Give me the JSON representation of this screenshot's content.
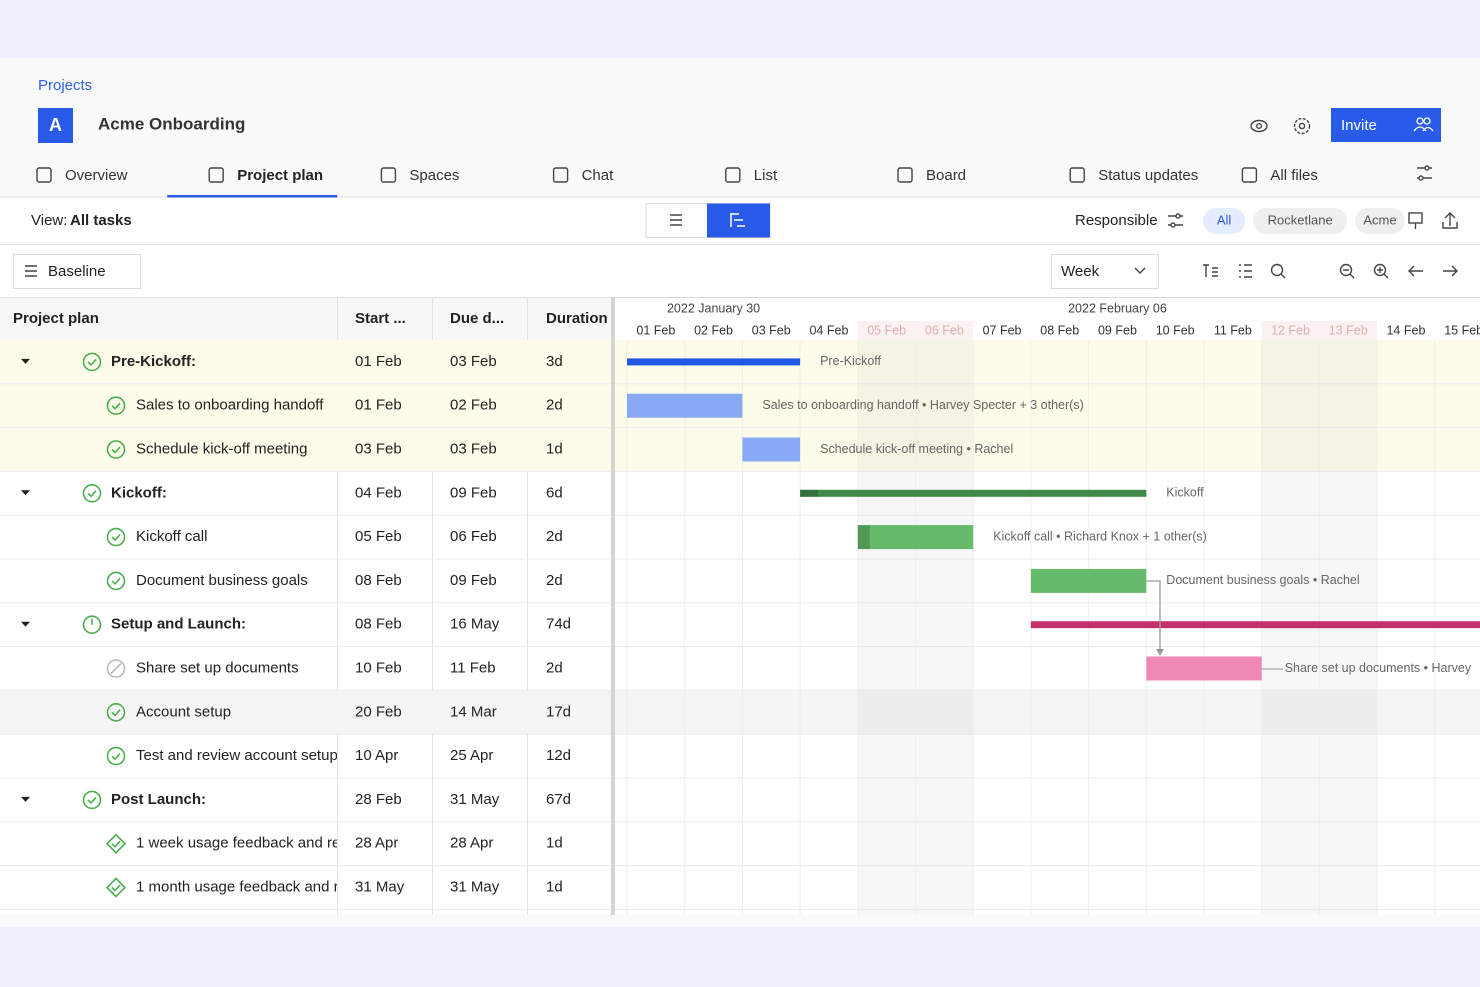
{
  "breadcrumb": "Projects",
  "project": {
    "avatar": "A",
    "name": "Acme Onboarding"
  },
  "invite": "Invite",
  "tabs": [
    {
      "label": "Overview"
    },
    {
      "label": "Project plan",
      "active": true
    },
    {
      "label": "Spaces"
    },
    {
      "label": "Chat"
    },
    {
      "label": "List"
    },
    {
      "label": "Board"
    },
    {
      "label": "Status updates"
    },
    {
      "label": "All files"
    }
  ],
  "toolbar": {
    "view_label": "View:",
    "view_value": "All tasks",
    "responsible": "Responsible",
    "filters": [
      {
        "label": "All",
        "active": true
      },
      {
        "label": "Rocketlane"
      },
      {
        "label": "Acme"
      }
    ],
    "baseline": "Baseline",
    "scale": "Week"
  },
  "table": {
    "columns": [
      "Project plan",
      "Start ...",
      "Due d...",
      "Duration"
    ],
    "rows": [
      {
        "level": 0,
        "status": "done",
        "name": "Pre-Kickoff:",
        "start": "01 Feb",
        "due": "03 Feb",
        "duration": "3d",
        "highlight": "#fdfbea",
        "bar": {
          "color": "#2257e4",
          "label": "Pre-Kickoff"
        }
      },
      {
        "level": 1,
        "status": "done",
        "name": "Sales to onboarding handoff",
        "start": "01 Feb",
        "due": "02 Feb",
        "duration": "2d",
        "highlight": "#fdfbea",
        "bar": {
          "color": "#88a9f4",
          "label": "Sales to onboarding handoff  •  Harvey Specter + 3 other(s)"
        }
      },
      {
        "level": 1,
        "status": "done",
        "name": "Schedule kick-off meeting",
        "start": "03 Feb",
        "due": "03 Feb",
        "duration": "1d",
        "highlight": "#fdfbea",
        "bar": {
          "color": "#88a9f4",
          "label": "Schedule kick-off meeting  •  Rachel"
        }
      },
      {
        "level": 0,
        "status": "done",
        "name": "Kickoff:",
        "start": "04 Feb",
        "due": "09 Feb",
        "duration": "6d",
        "bar": {
          "color": "#3e8a48",
          "label": "Kickoff"
        }
      },
      {
        "level": 1,
        "status": "done",
        "name": "Kickoff call",
        "start": "05 Feb",
        "due": "06 Feb",
        "duration": "2d",
        "bar": {
          "color": "#66bb6a",
          "label": "Kickoff call  •  Richard Knox + 1 other(s)"
        }
      },
      {
        "level": 1,
        "status": "done",
        "name": "Document business goals",
        "start": "08 Feb",
        "due": "09 Feb",
        "duration": "2d",
        "bar": {
          "color": "#66bb6a",
          "label": "Document business goals  •  Rachel"
        }
      },
      {
        "level": 0,
        "status": "in-progress",
        "name": "Setup and Launch:",
        "start": "08 Feb",
        "due": "16 May",
        "duration": "74d",
        "bar": {
          "color": "#c4306b"
        }
      },
      {
        "level": 1,
        "status": "skipped",
        "name": "Share set up documents",
        "start": "10 Feb",
        "due": "11 Feb",
        "duration": "2d",
        "bar": {
          "color": "#f088b5",
          "label": "Share set up documents  •  Harvey"
        }
      },
      {
        "level": 1,
        "status": "done",
        "name": "Account setup",
        "start": "20 Feb",
        "due": "14 Mar",
        "duration": "17d",
        "highlight": "#f5f5f5"
      },
      {
        "level": 1,
        "status": "done",
        "name": "Test and review account setup",
        "start": "10 Apr",
        "due": "25 Apr",
        "duration": "12d"
      },
      {
        "level": 0,
        "status": "done",
        "name": "Post Launch:",
        "start": "28 Feb",
        "due": "31 May",
        "duration": "67d"
      },
      {
        "level": 1,
        "status": "milestone",
        "name": "1 week usage feedback and re",
        "start": "28 Apr",
        "due": "28 Apr",
        "duration": "1d"
      },
      {
        "level": 1,
        "status": "milestone",
        "name": "1 month usage feedback and r",
        "start": "31 May",
        "due": "31 May",
        "duration": "1d"
      }
    ]
  },
  "timeline": {
    "weeks": [
      "2022 January 30",
      "2022 February 06"
    ],
    "days": [
      {
        "label": "01 Feb"
      },
      {
        "label": "02 Feb"
      },
      {
        "label": "03 Feb"
      },
      {
        "label": "04 Feb"
      },
      {
        "label": "05 Feb",
        "weekend": true
      },
      {
        "label": "06 Feb",
        "weekend": true
      },
      {
        "label": "07 Feb"
      },
      {
        "label": "08 Feb"
      },
      {
        "label": "09 Feb"
      },
      {
        "label": "10 Feb"
      },
      {
        "label": "11 Feb"
      },
      {
        "label": "12 Feb",
        "weekend": true
      },
      {
        "label": "13 Feb",
        "weekend": true
      },
      {
        "label": "14 Feb"
      },
      {
        "label": "15 Feb"
      }
    ]
  }
}
